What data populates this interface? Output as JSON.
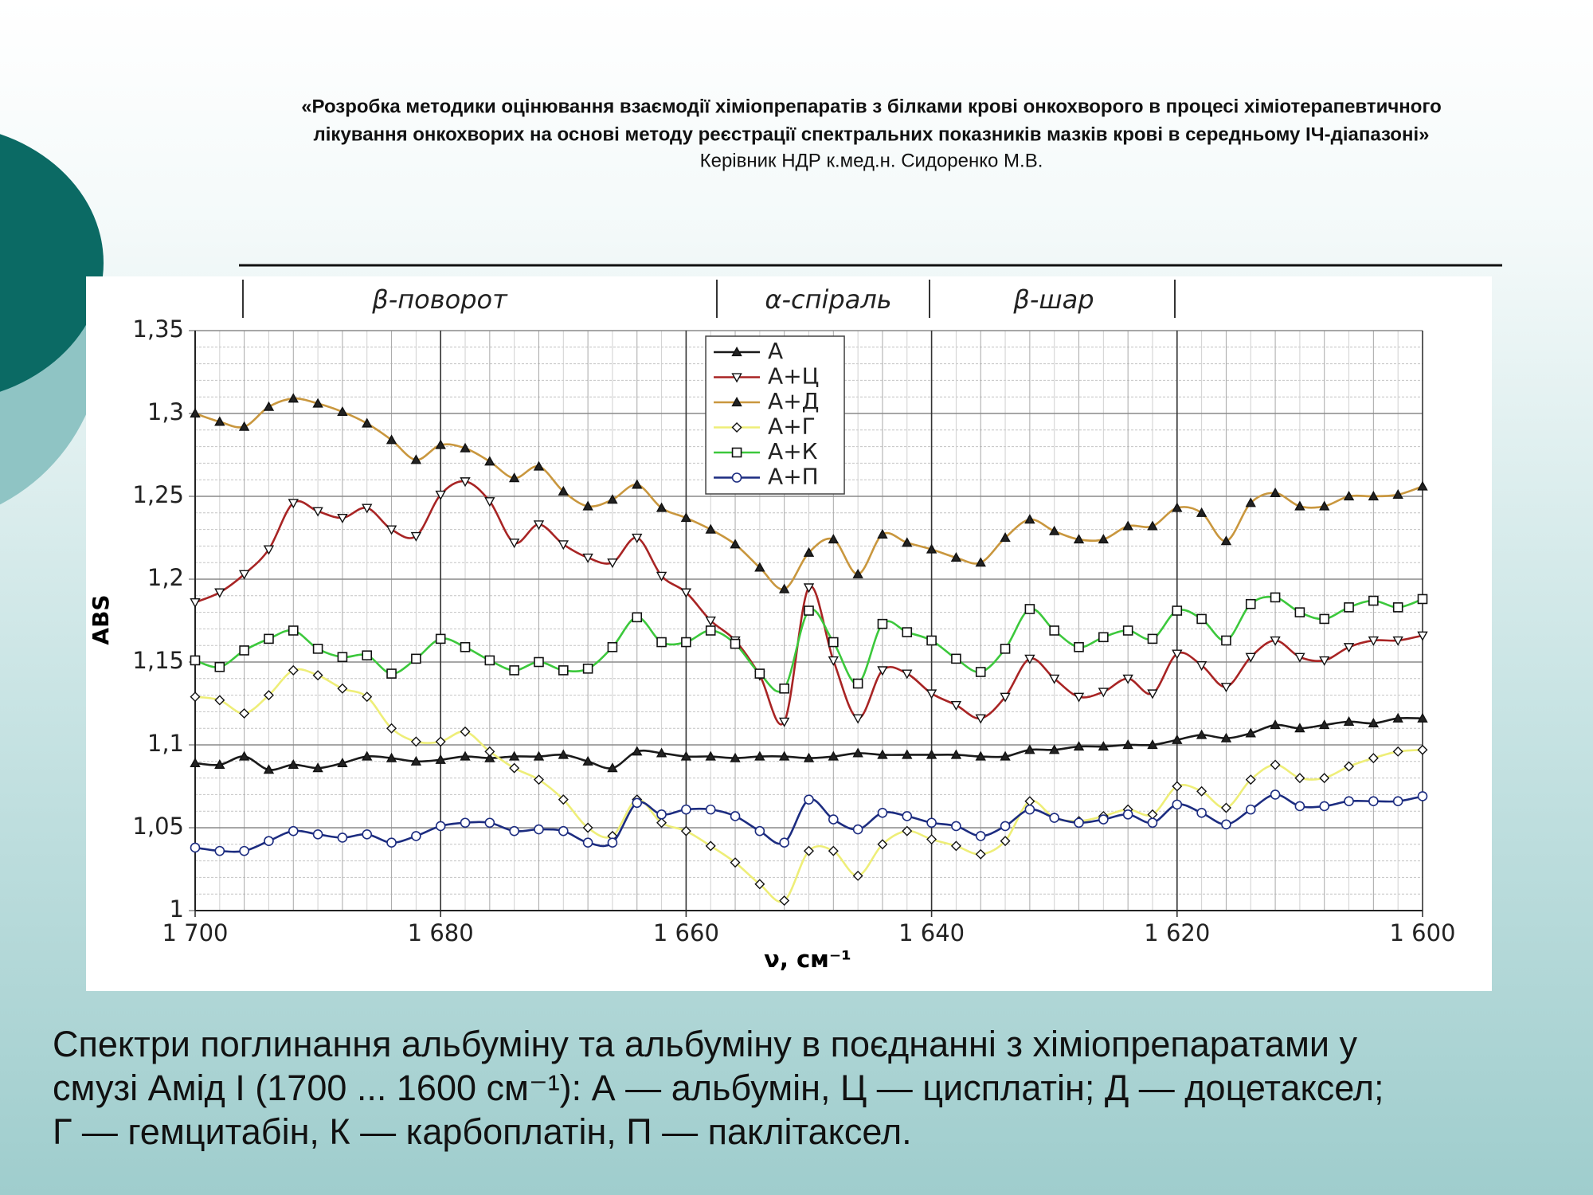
{
  "header": {
    "title_lines": [
      "«Розробка методики оцінювання взаємодії хіміопрепаратів з білками крові онкохворого в процесі хіміотерапевтичного",
      "лікування онкохворих на основі методу реєстрації спектральних показників мазків крові в середньому ІЧ-діапазоні»"
    ],
    "subtitle": "Керівник  НДР к.мед.н. Сидоренко М.В."
  },
  "chart_data": {
    "type": "line",
    "regions": [
      "β-поворот",
      "α-спіраль",
      "β-шар"
    ],
    "xlabel": "ν, см⁻¹",
    "ylabel": "ABS",
    "xlim": [
      1700,
      1600
    ],
    "ylim": [
      1,
      1.35
    ],
    "xticks": [
      {
        "value": 1700,
        "label": "1 700"
      },
      {
        "value": 1680,
        "label": "1 680"
      },
      {
        "value": 1660,
        "label": "1 660"
      },
      {
        "value": 1640,
        "label": "1 640"
      },
      {
        "value": 1620,
        "label": "1 620"
      },
      {
        "value": 1600,
        "label": "1 600"
      }
    ],
    "yticks": [
      1,
      {
        "value": 1.05,
        "label": "1,05"
      },
      {
        "value": 1.1,
        "label": "1,1"
      },
      {
        "value": 1.15,
        "label": "1,15"
      },
      {
        "value": 1.2,
        "label": "1,2"
      },
      {
        "value": 1.25,
        "label": "1,25"
      },
      {
        "value": 1.3,
        "label": "1,3"
      },
      {
        "value": 1.35,
        "label": "1,35"
      }
    ],
    "grid": true,
    "legend": "upper center",
    "x": [
      1700,
      1698,
      1696,
      1694,
      1692,
      1690,
      1688,
      1686,
      1684,
      1682,
      1680,
      1678,
      1676,
      1674,
      1672,
      1670,
      1668,
      1666,
      1664,
      1662,
      1660,
      1658,
      1656,
      1654,
      1652,
      1650,
      1648,
      1646,
      1644,
      1642,
      1640,
      1638,
      1636,
      1634,
      1632,
      1630,
      1628,
      1626,
      1624,
      1622,
      1620,
      1618,
      1616,
      1614,
      1612,
      1610,
      1608,
      1606,
      1604,
      1602,
      1600
    ],
    "series": [
      {
        "name": "А",
        "color": "#1a1a1a",
        "marker": "triangle-up",
        "values": [
          1.089,
          1.088,
          1.093,
          1.085,
          1.088,
          1.086,
          1.089,
          1.093,
          1.092,
          1.09,
          1.091,
          1.093,
          1.092,
          1.093,
          1.093,
          1.094,
          1.09,
          1.086,
          1.096,
          1.095,
          1.093,
          1.093,
          1.092,
          1.093,
          1.093,
          1.092,
          1.093,
          1.095,
          1.094,
          1.094,
          1.094,
          1.094,
          1.093,
          1.093,
          1.097,
          1.097,
          1.099,
          1.099,
          1.1,
          1.1,
          1.103,
          1.106,
          1.104,
          1.107,
          1.112,
          1.11,
          1.112,
          1.114,
          1.113,
          1.116,
          1.116
        ]
      },
      {
        "name": "А+Ц",
        "color": "#a82424",
        "marker": "triangle-down",
        "values": [
          1.186,
          1.192,
          1.203,
          1.218,
          1.246,
          1.241,
          1.237,
          1.243,
          1.23,
          1.226,
          1.251,
          1.259,
          1.247,
          1.222,
          1.233,
          1.221,
          1.213,
          1.21,
          1.225,
          1.202,
          1.192,
          1.175,
          1.163,
          1.142,
          1.114,
          1.195,
          1.151,
          1.116,
          1.145,
          1.143,
          1.131,
          1.124,
          1.116,
          1.129,
          1.152,
          1.14,
          1.129,
          1.132,
          1.14,
          1.131,
          1.155,
          1.148,
          1.135,
          1.153,
          1.163,
          1.153,
          1.151,
          1.159,
          1.163,
          1.163,
          1.166
        ]
      },
      {
        "name": "А+Д",
        "color": "#c9973e",
        "marker": "triangle-up",
        "values": [
          1.3,
          1.295,
          1.292,
          1.304,
          1.309,
          1.306,
          1.301,
          1.294,
          1.284,
          1.272,
          1.281,
          1.279,
          1.271,
          1.261,
          1.268,
          1.253,
          1.244,
          1.248,
          1.257,
          1.243,
          1.237,
          1.23,
          1.221,
          1.207,
          1.194,
          1.216,
          1.224,
          1.203,
          1.227,
          1.222,
          1.218,
          1.213,
          1.21,
          1.225,
          1.236,
          1.229,
          1.224,
          1.224,
          1.232,
          1.232,
          1.243,
          1.24,
          1.223,
          1.246,
          1.252,
          1.244,
          1.244,
          1.25,
          1.25,
          1.251,
          1.256
        ]
      },
      {
        "name": "А+Г",
        "color": "#eeee78",
        "marker": "diamond",
        "values": [
          1.129,
          1.127,
          1.119,
          1.13,
          1.145,
          1.142,
          1.134,
          1.129,
          1.11,
          1.102,
          1.102,
          1.108,
          1.096,
          1.086,
          1.079,
          1.067,
          1.05,
          1.045,
          1.067,
          1.053,
          1.048,
          1.039,
          1.029,
          1.016,
          1.006,
          1.036,
          1.036,
          1.021,
          1.04,
          1.048,
          1.043,
          1.039,
          1.034,
          1.042,
          1.066,
          1.056,
          1.054,
          1.057,
          1.061,
          1.058,
          1.075,
          1.072,
          1.062,
          1.079,
          1.088,
          1.08,
          1.08,
          1.087,
          1.092,
          1.096,
          1.097
        ]
      },
      {
        "name": "А+К",
        "color": "#3cc83c",
        "marker": "square",
        "values": [
          1.151,
          1.147,
          1.157,
          1.164,
          1.169,
          1.158,
          1.153,
          1.154,
          1.143,
          1.152,
          1.164,
          1.159,
          1.151,
          1.145,
          1.15,
          1.145,
          1.146,
          1.159,
          1.177,
          1.162,
          1.162,
          1.169,
          1.161,
          1.143,
          1.134,
          1.181,
          1.162,
          1.137,
          1.173,
          1.168,
          1.163,
          1.152,
          1.144,
          1.158,
          1.182,
          1.169,
          1.159,
          1.165,
          1.169,
          1.164,
          1.181,
          1.176,
          1.163,
          1.185,
          1.189,
          1.18,
          1.176,
          1.183,
          1.187,
          1.183,
          1.188
        ]
      },
      {
        "name": "А+П",
        "color": "#1c2c80",
        "marker": "circle",
        "values": [
          1.038,
          1.036,
          1.036,
          1.042,
          1.048,
          1.046,
          1.044,
          1.046,
          1.041,
          1.045,
          1.051,
          1.053,
          1.053,
          1.048,
          1.049,
          1.048,
          1.041,
          1.041,
          1.065,
          1.058,
          1.061,
          1.061,
          1.057,
          1.048,
          1.041,
          1.067,
          1.055,
          1.049,
          1.059,
          1.057,
          1.053,
          1.051,
          1.045,
          1.051,
          1.061,
          1.056,
          1.053,
          1.055,
          1.058,
          1.053,
          1.064,
          1.059,
          1.052,
          1.061,
          1.07,
          1.063,
          1.063,
          1.066,
          1.066,
          1.066,
          1.069
        ]
      }
    ]
  },
  "caption_lines": [
    "Спектри поглинання альбуміну та альбуміну в поєднанні з хіміопрепаратами у",
    "смузі Амід І (1700 ... 1600 см⁻¹): А — альбумін, Ц — цисплатін; Д — доцетаксел;",
    "Г — гемцитабін, К — карбоплатін, П — паклітаксел."
  ]
}
